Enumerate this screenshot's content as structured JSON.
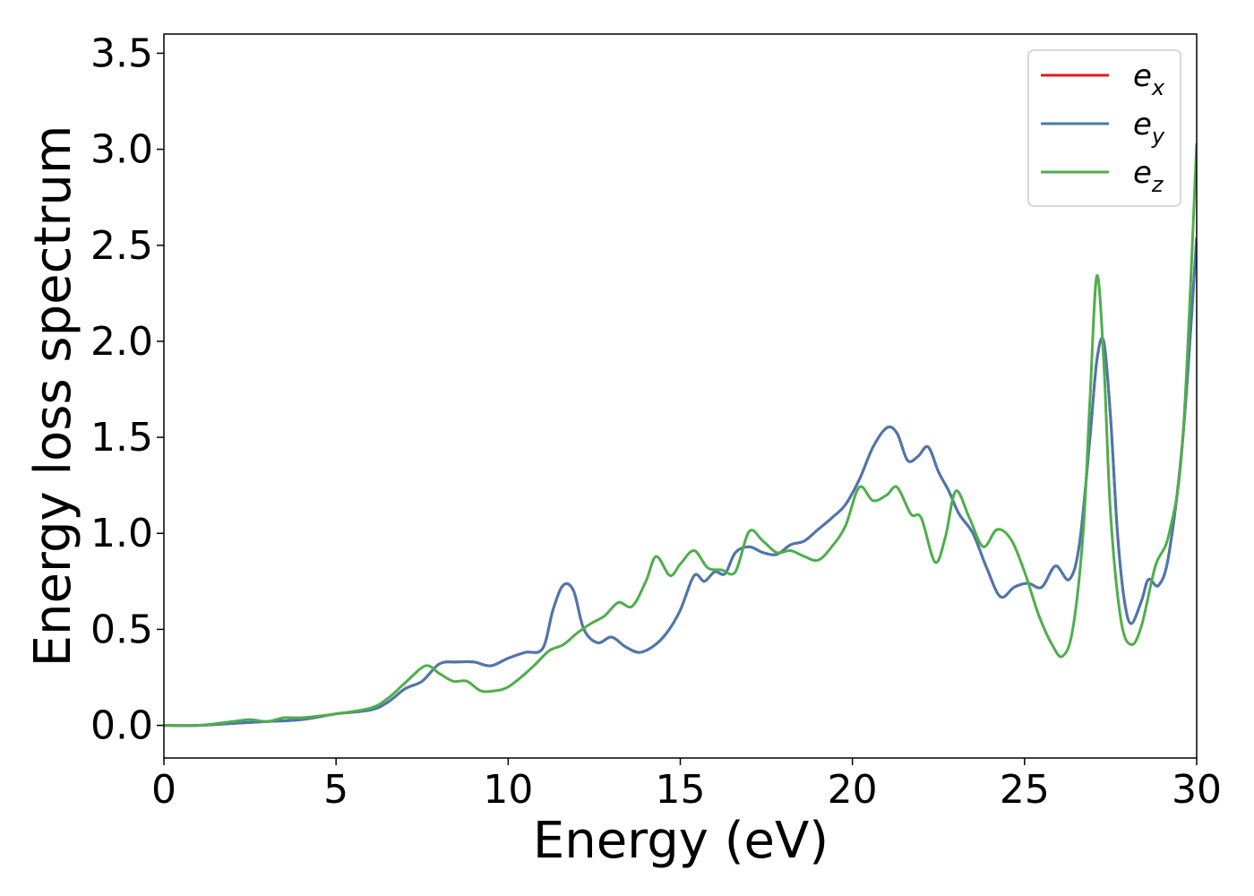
{
  "chart_data": {
    "type": "line",
    "title": "",
    "xlabel": "Energy (eV)",
    "ylabel": "Energy loss spectrum",
    "xlim": [
      0,
      30
    ],
    "ylim": [
      -0.17,
      3.6
    ],
    "xticks": [
      0,
      5,
      10,
      15,
      20,
      25,
      30
    ],
    "xtick_labels": [
      "0",
      "5",
      "10",
      "15",
      "20",
      "25",
      "30"
    ],
    "yticks": [
      0.0,
      0.5,
      1.0,
      1.5,
      2.0,
      2.5,
      3.0,
      3.5
    ],
    "ytick_labels": [
      "0.0",
      "0.5",
      "1.0",
      "1.5",
      "2.0",
      "2.5",
      "3.0",
      "3.5"
    ],
    "grid": false,
    "legend_position": "top-right",
    "series": [
      {
        "name": "e",
        "subscript": "x",
        "color": "#e41a1c",
        "x": [
          0,
          1,
          2,
          3,
          4,
          5,
          6,
          6.5,
          7,
          7.5,
          8,
          8.5,
          9,
          9.5,
          10,
          10.5,
          11,
          11.3,
          11.6,
          11.9,
          12.2,
          12.6,
          13,
          13.4,
          13.8,
          14.2,
          14.6,
          15,
          15.4,
          15.7,
          16,
          16.3,
          16.6,
          17,
          17.4,
          17.8,
          18.2,
          18.6,
          19,
          19.4,
          19.8,
          20.2,
          20.6,
          21,
          21.3,
          21.6,
          21.9,
          22.2,
          22.5,
          22.8,
          23.1,
          23.5,
          23.9,
          24.3,
          24.7,
          25.1,
          25.5,
          25.9,
          26.3,
          26.6,
          26.9,
          27.1,
          27.3,
          27.5,
          27.7,
          27.9,
          28.1,
          28.4,
          28.6,
          28.9,
          29.2,
          29.6,
          30
        ],
        "y": [
          0.0,
          0.0,
          0.01,
          0.02,
          0.03,
          0.06,
          0.08,
          0.12,
          0.19,
          0.23,
          0.32,
          0.33,
          0.33,
          0.31,
          0.35,
          0.38,
          0.4,
          0.6,
          0.73,
          0.7,
          0.5,
          0.43,
          0.46,
          0.41,
          0.38,
          0.41,
          0.48,
          0.6,
          0.78,
          0.75,
          0.8,
          0.79,
          0.9,
          0.93,
          0.9,
          0.89,
          0.94,
          0.96,
          1.02,
          1.08,
          1.15,
          1.28,
          1.45,
          1.55,
          1.52,
          1.38,
          1.4,
          1.45,
          1.32,
          1.22,
          1.1,
          1.0,
          0.82,
          0.67,
          0.72,
          0.74,
          0.72,
          0.83,
          0.76,
          0.95,
          1.5,
          1.9,
          2.0,
          1.6,
          1.0,
          0.65,
          0.53,
          0.65,
          0.76,
          0.73,
          0.9,
          1.5,
          2.54
        ]
      },
      {
        "name": "e",
        "subscript": "y",
        "color": "#4a78b0",
        "x": [
          0,
          1,
          2,
          3,
          4,
          5,
          6,
          6.5,
          7,
          7.5,
          8,
          8.5,
          9,
          9.5,
          10,
          10.5,
          11,
          11.3,
          11.6,
          11.9,
          12.2,
          12.6,
          13,
          13.4,
          13.8,
          14.2,
          14.6,
          15,
          15.4,
          15.7,
          16,
          16.3,
          16.6,
          17,
          17.4,
          17.8,
          18.2,
          18.6,
          19,
          19.4,
          19.8,
          20.2,
          20.6,
          21,
          21.3,
          21.6,
          21.9,
          22.2,
          22.5,
          22.8,
          23.1,
          23.5,
          23.9,
          24.3,
          24.7,
          25.1,
          25.5,
          25.9,
          26.3,
          26.6,
          26.9,
          27.1,
          27.3,
          27.5,
          27.7,
          27.9,
          28.1,
          28.4,
          28.6,
          28.9,
          29.2,
          29.6,
          30
        ],
        "y": [
          0.0,
          0.0,
          0.01,
          0.02,
          0.03,
          0.06,
          0.08,
          0.12,
          0.19,
          0.23,
          0.32,
          0.33,
          0.33,
          0.31,
          0.35,
          0.38,
          0.4,
          0.6,
          0.73,
          0.7,
          0.5,
          0.43,
          0.46,
          0.41,
          0.38,
          0.41,
          0.48,
          0.6,
          0.78,
          0.75,
          0.8,
          0.79,
          0.9,
          0.93,
          0.9,
          0.89,
          0.94,
          0.96,
          1.02,
          1.08,
          1.15,
          1.28,
          1.45,
          1.55,
          1.52,
          1.38,
          1.4,
          1.45,
          1.32,
          1.22,
          1.1,
          1.0,
          0.82,
          0.67,
          0.72,
          0.74,
          0.72,
          0.83,
          0.76,
          0.95,
          1.5,
          1.9,
          2.0,
          1.6,
          1.0,
          0.65,
          0.53,
          0.65,
          0.76,
          0.73,
          0.9,
          1.5,
          2.54
        ]
      },
      {
        "name": "e",
        "subscript": "z",
        "color": "#4daf4a",
        "x": [
          0,
          1,
          2,
          2.5,
          3,
          3.5,
          4,
          5,
          6,
          6.5,
          7,
          7.6,
          8,
          8.4,
          8.8,
          9.2,
          9.6,
          10,
          10.5,
          10.8,
          11.2,
          11.6,
          12,
          12.4,
          12.8,
          13.2,
          13.6,
          14,
          14.3,
          14.7,
          15,
          15.4,
          15.8,
          16.2,
          16.6,
          17,
          17.4,
          17.8,
          18.2,
          18.6,
          19,
          19.4,
          19.8,
          20.2,
          20.6,
          21,
          21.3,
          21.7,
          22,
          22.4,
          22.7,
          23,
          23.4,
          23.8,
          24.2,
          24.6,
          25,
          25.4,
          25.8,
          26.1,
          26.4,
          26.7,
          26.9,
          27.1,
          27.3,
          27.5,
          27.8,
          28.1,
          28.4,
          28.8,
          29.2,
          29.6,
          30
        ],
        "y": [
          0.0,
          0.0,
          0.02,
          0.03,
          0.02,
          0.04,
          0.04,
          0.06,
          0.09,
          0.14,
          0.22,
          0.31,
          0.27,
          0.23,
          0.23,
          0.18,
          0.18,
          0.2,
          0.27,
          0.32,
          0.39,
          0.42,
          0.48,
          0.53,
          0.57,
          0.64,
          0.62,
          0.75,
          0.88,
          0.78,
          0.84,
          0.91,
          0.82,
          0.81,
          0.8,
          1.01,
          0.96,
          0.9,
          0.91,
          0.88,
          0.86,
          0.93,
          1.04,
          1.24,
          1.17,
          1.2,
          1.24,
          1.1,
          1.08,
          0.85,
          0.98,
          1.22,
          1.08,
          0.93,
          1.02,
          0.97,
          0.8,
          0.58,
          0.42,
          0.36,
          0.5,
          1.0,
          1.7,
          2.34,
          1.9,
          1.1,
          0.55,
          0.42,
          0.52,
          0.83,
          1.0,
          1.5,
          3.03
        ]
      }
    ]
  }
}
